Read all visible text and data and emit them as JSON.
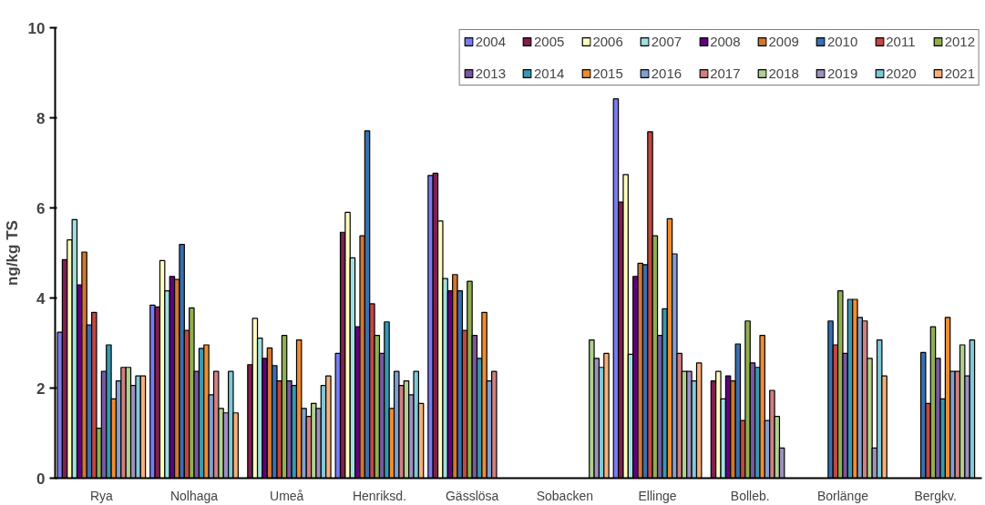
{
  "chart_data": {
    "type": "bar",
    "ylabel": "ng/kg TS",
    "categories": [
      "Rya",
      "Nolhaga",
      "Umeå",
      "Henriksd.",
      "Gässlösa",
      "Sobacken",
      "Ellinge",
      "Bolleb.",
      "Borlänge",
      "Bergkv."
    ],
    "ylim": [
      0,
      10
    ],
    "yticks": [
      0,
      2,
      4,
      6,
      8,
      10
    ],
    "grid": false,
    "legend": "top",
    "series": [
      {
        "name": "2004",
        "color": "#7b7bf0",
        "values": [
          3.24,
          3.84,
          null,
          2.77,
          6.72,
          null,
          8.42,
          null,
          null,
          null
        ]
      },
      {
        "name": "2005",
        "color": "#7f1f4f",
        "values": [
          4.85,
          3.8,
          2.52,
          5.46,
          6.77,
          null,
          6.13,
          2.16,
          null,
          null
        ]
      },
      {
        "name": "2006",
        "color": "#ffffc0",
        "values": [
          5.29,
          4.83,
          3.55,
          5.9,
          5.71,
          null,
          6.74,
          2.37,
          null,
          null
        ]
      },
      {
        "name": "2007",
        "color": "#a0e0e0",
        "values": [
          5.74,
          4.16,
          3.11,
          4.89,
          4.43,
          null,
          2.75,
          1.76,
          null,
          null
        ]
      },
      {
        "name": "2008",
        "color": "#600080",
        "values": [
          4.29,
          4.48,
          2.66,
          3.36,
          4.16,
          null,
          4.48,
          2.27,
          null,
          null
        ]
      },
      {
        "name": "2009",
        "color": "#d07830",
        "values": [
          5.02,
          4.41,
          2.89,
          5.38,
          4.52,
          null,
          4.77,
          2.16,
          null,
          null
        ]
      },
      {
        "name": "2010",
        "color": "#3870b0",
        "values": [
          3.4,
          5.19,
          2.5,
          7.71,
          4.16,
          null,
          4.74,
          2.98,
          3.49,
          2.79
        ]
      },
      {
        "name": "2011",
        "color": "#c04840",
        "values": [
          3.68,
          3.28,
          2.16,
          3.87,
          3.28,
          null,
          7.69,
          1.28,
          2.96,
          1.66
        ]
      },
      {
        "name": "2012",
        "color": "#90b050",
        "values": [
          1.11,
          3.78,
          3.17,
          3.17,
          4.37,
          null,
          5.38,
          3.49,
          4.16,
          3.36
        ]
      },
      {
        "name": "2013",
        "color": "#7858a0",
        "values": [
          2.37,
          2.37,
          2.16,
          2.77,
          3.17,
          null,
          3.17,
          2.56,
          2.77,
          2.66
        ]
      },
      {
        "name": "2014",
        "color": "#3898b0",
        "values": [
          2.96,
          2.88,
          2.06,
          3.47,
          2.66,
          null,
          3.76,
          2.46,
          3.97,
          1.76
        ]
      },
      {
        "name": "2015",
        "color": "#f08c30",
        "values": [
          1.76,
          2.96,
          3.07,
          1.55,
          3.68,
          null,
          5.76,
          3.17,
          3.97,
          3.57
        ]
      },
      {
        "name": "2016",
        "color": "#80a0d0",
        "values": [
          2.16,
          1.85,
          1.55,
          2.37,
          2.16,
          null,
          4.98,
          1.28,
          3.57,
          2.37
        ]
      },
      {
        "name": "2017",
        "color": "#d08080",
        "values": [
          2.46,
          2.37,
          1.37,
          2.06,
          2.37,
          null,
          2.77,
          1.95,
          3.49,
          2.37
        ]
      },
      {
        "name": "2018",
        "color": "#b0d090",
        "values": [
          2.46,
          1.55,
          1.66,
          2.16,
          null,
          3.07,
          2.37,
          1.37,
          2.66,
          2.96
        ]
      },
      {
        "name": "2019",
        "color": "#a090c0",
        "values": [
          2.06,
          1.45,
          1.55,
          1.85,
          null,
          2.66,
          2.37,
          0.67,
          0.67,
          2.27
        ]
      },
      {
        "name": "2020",
        "color": "#80c8d8",
        "values": [
          2.27,
          2.37,
          2.06,
          2.37,
          null,
          2.46,
          2.16,
          null,
          3.07,
          3.07
        ]
      },
      {
        "name": "2021",
        "color": "#f8b078",
        "values": [
          2.27,
          1.45,
          2.27,
          1.66,
          null,
          2.77,
          2.56,
          null,
          2.27,
          null
        ]
      }
    ]
  }
}
